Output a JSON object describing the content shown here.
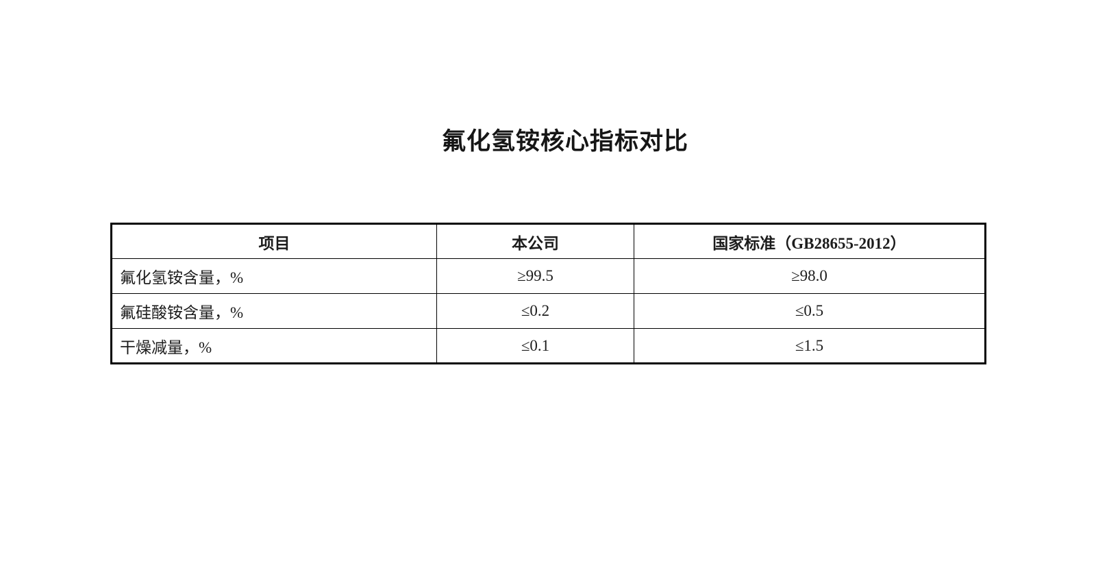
{
  "page": {
    "title": "氟化氢铵核心指标对比"
  },
  "table": {
    "headers": {
      "item": "项目",
      "company": "本公司",
      "national": "国家标准（GB28655-2012）"
    },
    "rows": [
      {
        "item": "氟化氢铵含量，%",
        "company": "≥99.5",
        "national": "≥98.0"
      },
      {
        "item": "氟硅酸铵含量，%",
        "company": "≤0.2",
        "national": "≤0.5"
      },
      {
        "item": "干燥减量，%",
        "company": "≤0.1",
        "national": "≤1.5"
      }
    ]
  },
  "colors": {
    "background": "#ffffff",
    "text": "#1c1c1c",
    "border": "#000000"
  }
}
